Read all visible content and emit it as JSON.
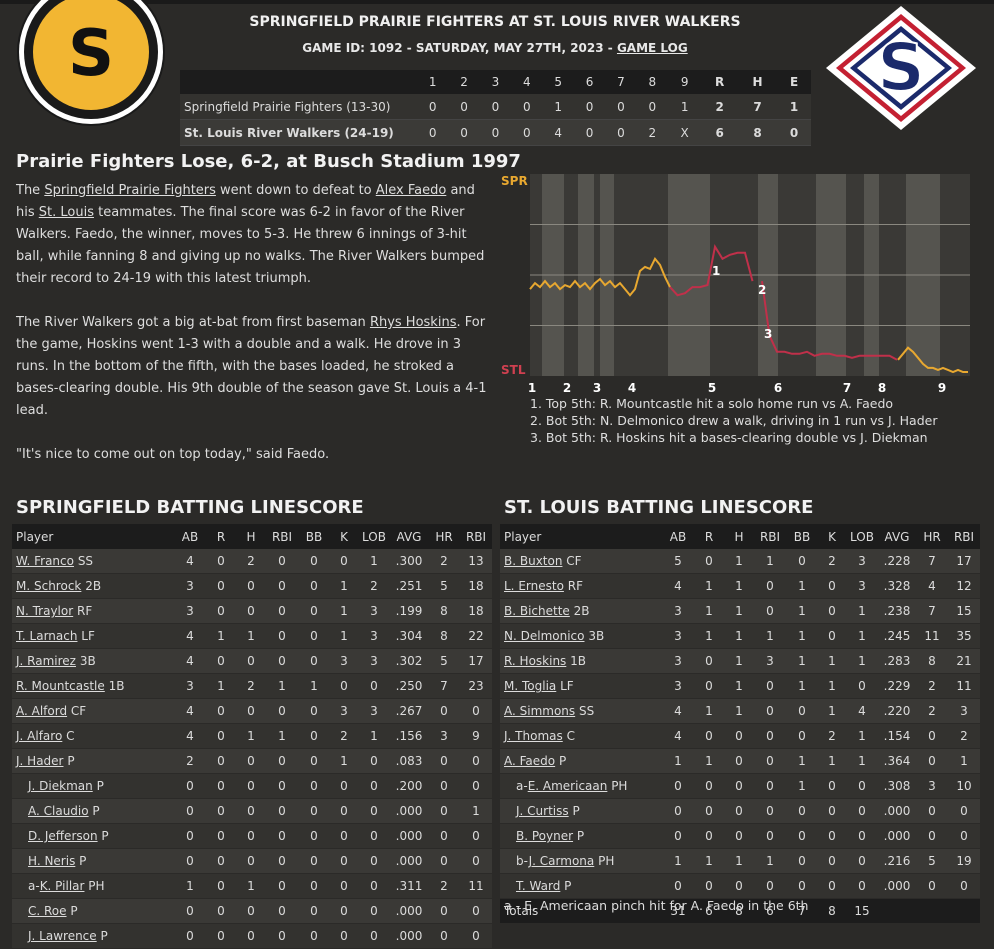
{
  "header": {
    "title": "SPRINGFIELD PRAIRIE FIGHTERS AT ST. LOUIS RIVER WALKERS",
    "subtitle_prefix": "GAME ID: 1092 - SATURDAY, MAY 27TH, 2023 - ",
    "game_log_link": "GAME LOG",
    "home_logo_letter": "S",
    "away_logo_letter": "S"
  },
  "linescore": {
    "headers": [
      "1",
      "2",
      "3",
      "4",
      "5",
      "6",
      "7",
      "8",
      "9",
      "R",
      "H",
      "E"
    ],
    "rows": [
      {
        "team": "Springfield Prairie Fighters (13-30)",
        "innings": [
          "0",
          "0",
          "0",
          "0",
          "1",
          "0",
          "0",
          "0",
          "1"
        ],
        "r": "2",
        "h": "7",
        "e": "1"
      },
      {
        "team": "St. Louis River Walkers (24-19)",
        "innings": [
          "0",
          "0",
          "0",
          "0",
          "4",
          "0",
          "0",
          "2",
          "X"
        ],
        "r": "6",
        "h": "8",
        "e": "0"
      }
    ]
  },
  "story": {
    "headline": "Prairie Fighters Lose, 6-2, at Busch Stadium 1997",
    "p1": {
      "t1": "The ",
      "l1": "Springfield Prairie Fighters",
      "t2": " went down to defeat to ",
      "l2": "Alex Faedo",
      "t3": " and his ",
      "l3": "St. Louis",
      "t4": " teammates. The final score was 6-2 in favor of the River Walkers. Faedo, the winner, moves to 5-3. He threw 6 innings of 3-hit ball, while fanning 8 and giving up no walks. The River Walkers bumped their record to 24-19 with this latest triumph."
    },
    "p2": {
      "t1": "The River Walkers got a big at-bat from first baseman ",
      "l1": "Rhys Hoskins",
      "t2": ". For the game, Hoskins went 1-3 with a double and a walk. He drove in 3 runs. In the bottom of the fifth, with the bases loaded, he stroked a bases-clearing double. His 9th double of the season gave St. Louis a 4-1 lead."
    },
    "p3": "\"It's nice to come out on top today,\" said Faedo."
  },
  "chart_data": {
    "type": "line",
    "title": "",
    "top_label": "SPR",
    "bottom_label": "STL",
    "x_ticks": [
      "1",
      "2",
      "3",
      "4",
      "5",
      "6",
      "7",
      "8",
      "9"
    ],
    "ylim": [
      0,
      1
    ],
    "note": "",
    "series": [
      {
        "color": "#e8a830",
        "values": [
          0.43,
          0.46,
          0.44,
          0.47,
          0.44,
          0.46,
          0.43,
          0.45,
          0.44,
          0.47,
          0.44,
          0.46,
          0.43,
          0.46,
          0.48,
          0.45,
          0.47,
          0.44,
          0.46,
          0.43,
          0.4,
          0.43,
          0.52,
          0.54,
          0.53,
          0.58,
          0.55,
          0.49,
          0.44
        ]
      },
      {
        "color": "#c0304a",
        "values": [
          0.44,
          0.4,
          0.41,
          0.44,
          0.44,
          0.45,
          0.64,
          0.58,
          0.6,
          0.61,
          0.61,
          0.47
        ]
      },
      {
        "color": "#c0304a",
        "values": [
          0.47,
          0.2,
          0.12,
          0.12,
          0.11,
          0.11,
          0.12,
          0.1,
          0.11,
          0.11,
          0.1,
          0.1,
          0.09,
          0.1,
          0.1,
          0.1,
          0.1,
          0.1,
          0.08
        ]
      },
      {
        "color": "#e8a830",
        "values": [
          0.08,
          0.11,
          0.14,
          0.12,
          0.09,
          0.06,
          0.04,
          0.04,
          0.03,
          0.04,
          0.03,
          0.02,
          0.03,
          0.02,
          0.02
        ]
      }
    ],
    "annotations": [
      "1",
      "2",
      "3"
    ]
  },
  "wp_notes": [
    "1. Top 5th: R. Mountcastle hit a solo home run vs A. Faedo",
    "2. Bot 5th: N. Delmonico drew a walk, driving in 1 run vs J. Hader",
    "3. Bot 5th: R. Hoskins hit a bases-clearing double vs J. Diekman"
  ],
  "springfield": {
    "title": "SPRINGFIELD BATTING LINESCORE",
    "columns": [
      "Player",
      "AB",
      "R",
      "H",
      "RBI",
      "BB",
      "K",
      "LOB",
      "AVG",
      "HR",
      "RBI"
    ],
    "rows": [
      {
        "prefix": "",
        "name": "W. Franco",
        "pos": "SS",
        "stats": [
          "4",
          "0",
          "2",
          "0",
          "0",
          "0",
          "1",
          ".300",
          "2",
          "13"
        ]
      },
      {
        "prefix": "",
        "name": "M. Schrock",
        "pos": "2B",
        "stats": [
          "3",
          "0",
          "0",
          "0",
          "0",
          "1",
          "2",
          ".251",
          "5",
          "18"
        ]
      },
      {
        "prefix": "",
        "name": "N. Traylor",
        "pos": "RF",
        "stats": [
          "3",
          "0",
          "0",
          "0",
          "0",
          "1",
          "3",
          ".199",
          "8",
          "18"
        ]
      },
      {
        "prefix": "",
        "name": "T. Larnach",
        "pos": "LF",
        "stats": [
          "4",
          "1",
          "1",
          "0",
          "0",
          "1",
          "3",
          ".304",
          "8",
          "22"
        ]
      },
      {
        "prefix": "",
        "name": "J. Ramirez",
        "pos": "3B",
        "stats": [
          "4",
          "0",
          "0",
          "0",
          "0",
          "3",
          "3",
          ".302",
          "5",
          "17"
        ]
      },
      {
        "prefix": "",
        "name": "R. Mountcastle",
        "pos": "1B",
        "stats": [
          "3",
          "1",
          "2",
          "1",
          "1",
          "0",
          "0",
          ".250",
          "7",
          "23"
        ]
      },
      {
        "prefix": "",
        "name": "A. Alford",
        "pos": "CF",
        "stats": [
          "4",
          "0",
          "0",
          "0",
          "0",
          "3",
          "3",
          ".267",
          "0",
          "0"
        ]
      },
      {
        "prefix": "",
        "name": "J. Alfaro",
        "pos": "C",
        "stats": [
          "4",
          "0",
          "1",
          "1",
          "0",
          "2",
          "1",
          ".156",
          "3",
          "9"
        ]
      },
      {
        "prefix": "",
        "name": "J. Hader",
        "pos": "P",
        "stats": [
          "2",
          "0",
          "0",
          "0",
          "0",
          "1",
          "0",
          ".083",
          "0",
          "0"
        ]
      },
      {
        "prefix": "",
        "name": "J. Diekman",
        "pos": "P",
        "sub": true,
        "stats": [
          "0",
          "0",
          "0",
          "0",
          "0",
          "0",
          "0",
          ".200",
          "0",
          "0"
        ]
      },
      {
        "prefix": "",
        "name": "A. Claudio",
        "pos": "P",
        "sub": true,
        "stats": [
          "0",
          "0",
          "0",
          "0",
          "0",
          "0",
          "0",
          ".000",
          "0",
          "1"
        ]
      },
      {
        "prefix": "",
        "name": "D. Jefferson",
        "pos": "P",
        "sub": true,
        "stats": [
          "0",
          "0",
          "0",
          "0",
          "0",
          "0",
          "0",
          ".000",
          "0",
          "0"
        ]
      },
      {
        "prefix": "",
        "name": "H. Neris",
        "pos": "P",
        "sub": true,
        "stats": [
          "0",
          "0",
          "0",
          "0",
          "0",
          "0",
          "0",
          ".000",
          "0",
          "0"
        ]
      },
      {
        "prefix": "a-",
        "name": "K. Pillar",
        "pos": "PH",
        "sub": true,
        "stats": [
          "1",
          "0",
          "1",
          "0",
          "0",
          "0",
          "0",
          ".311",
          "2",
          "11"
        ]
      },
      {
        "prefix": "",
        "name": "C. Roe",
        "pos": "P",
        "sub": true,
        "stats": [
          "0",
          "0",
          "0",
          "0",
          "0",
          "0",
          "0",
          ".000",
          "0",
          "0"
        ]
      },
      {
        "prefix": "",
        "name": "J. Lawrence",
        "pos": "P",
        "sub": true,
        "stats": [
          "0",
          "0",
          "0",
          "0",
          "0",
          "0",
          "0",
          ".000",
          "0",
          "0"
        ]
      }
    ]
  },
  "stlouis": {
    "title": "ST. LOUIS BATTING LINESCORE",
    "columns": [
      "Player",
      "AB",
      "R",
      "H",
      "RBI",
      "BB",
      "K",
      "LOB",
      "AVG",
      "HR",
      "RBI"
    ],
    "rows": [
      {
        "prefix": "",
        "name": "B. Buxton",
        "pos": "CF",
        "stats": [
          "5",
          "0",
          "1",
          "1",
          "0",
          "2",
          "3",
          ".228",
          "7",
          "17"
        ]
      },
      {
        "prefix": "",
        "name": "L. Ernesto",
        "pos": "RF",
        "stats": [
          "4",
          "1",
          "1",
          "0",
          "1",
          "0",
          "3",
          ".328",
          "4",
          "12"
        ]
      },
      {
        "prefix": "",
        "name": "B. Bichette",
        "pos": "2B",
        "stats": [
          "3",
          "1",
          "1",
          "0",
          "1",
          "0",
          "1",
          ".238",
          "7",
          "15"
        ]
      },
      {
        "prefix": "",
        "name": "N. Delmonico",
        "pos": "3B",
        "stats": [
          "3",
          "1",
          "1",
          "1",
          "1",
          "0",
          "1",
          ".245",
          "11",
          "35"
        ]
      },
      {
        "prefix": "",
        "name": "R. Hoskins",
        "pos": "1B",
        "stats": [
          "3",
          "0",
          "1",
          "3",
          "1",
          "1",
          "1",
          ".283",
          "8",
          "21"
        ]
      },
      {
        "prefix": "",
        "name": "M. Toglia",
        "pos": "LF",
        "stats": [
          "3",
          "0",
          "1",
          "0",
          "1",
          "1",
          "0",
          ".229",
          "2",
          "11"
        ]
      },
      {
        "prefix": "",
        "name": "A. Simmons",
        "pos": "SS",
        "stats": [
          "4",
          "1",
          "1",
          "0",
          "0",
          "1",
          "4",
          ".220",
          "2",
          "3"
        ]
      },
      {
        "prefix": "",
        "name": "J. Thomas",
        "pos": "C",
        "stats": [
          "4",
          "0",
          "0",
          "0",
          "0",
          "2",
          "1",
          ".154",
          "0",
          "2"
        ]
      },
      {
        "prefix": "",
        "name": "A. Faedo",
        "pos": "P",
        "stats": [
          "1",
          "1",
          "0",
          "0",
          "1",
          "1",
          "1",
          ".364",
          "0",
          "1"
        ]
      },
      {
        "prefix": "a-",
        "name": "E. Americaan",
        "pos": "PH",
        "sub": true,
        "stats": [
          "0",
          "0",
          "0",
          "0",
          "1",
          "0",
          "0",
          ".308",
          "3",
          "10"
        ]
      },
      {
        "prefix": "",
        "name": "J. Curtiss",
        "pos": "P",
        "sub": true,
        "stats": [
          "0",
          "0",
          "0",
          "0",
          "0",
          "0",
          "0",
          ".000",
          "0",
          "0"
        ]
      },
      {
        "prefix": "",
        "name": "B. Poyner",
        "pos": "P",
        "sub": true,
        "stats": [
          "0",
          "0",
          "0",
          "0",
          "0",
          "0",
          "0",
          ".000",
          "0",
          "0"
        ]
      },
      {
        "prefix": "b-",
        "name": "J. Carmona",
        "pos": "PH",
        "sub": true,
        "stats": [
          "1",
          "1",
          "1",
          "1",
          "0",
          "0",
          "0",
          ".216",
          "5",
          "19"
        ]
      },
      {
        "prefix": "",
        "name": "T. Ward",
        "pos": "P",
        "sub": true,
        "stats": [
          "0",
          "0",
          "0",
          "0",
          "0",
          "0",
          "0",
          ".000",
          "0",
          "0"
        ]
      }
    ],
    "totals": {
      "label": "Totals",
      "stats": [
        "31",
        "6",
        "8",
        "6",
        "7",
        "8",
        "15",
        "",
        "",
        ""
      ]
    },
    "footnote": "a - E. Americaan pinch hit for A. Faedo in the 6th"
  },
  "colors": {
    "background": "#2b2a28",
    "away_accent": "#f2b632",
    "home_accent": "#1b2a6b",
    "home_red": "#c42032",
    "spr_line": "#e8a830",
    "stl_line": "#c0304a"
  }
}
